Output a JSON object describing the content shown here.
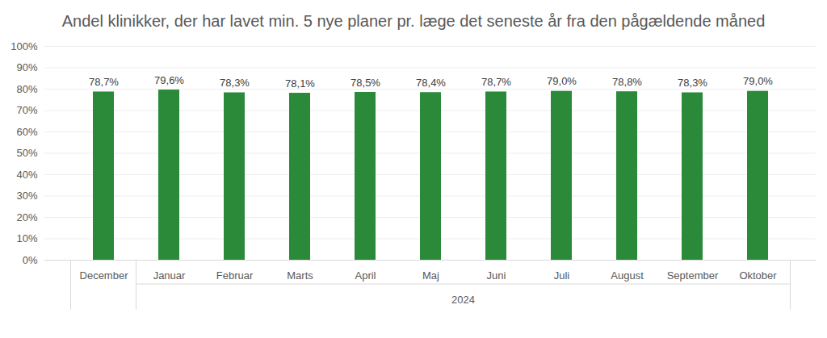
{
  "chart_data": {
    "type": "bar",
    "title": "Andel klinikker, der har lavet min. 5 nye planer pr. læge det seneste år fra den pågældende måned",
    "categories": [
      "December",
      "Januar",
      "Februar",
      "Marts",
      "April",
      "Maj",
      "Juni",
      "Juli",
      "August",
      "September",
      "Oktober"
    ],
    "values": [
      78.7,
      79.6,
      78.3,
      78.1,
      78.5,
      78.4,
      78.7,
      79.0,
      78.8,
      78.3,
      79.0
    ],
    "value_labels": [
      "78,7%",
      "79,6%",
      "78,3%",
      "78,1%",
      "78,5%",
      "78,4%",
      "78,7%",
      "79,0%",
      "78,8%",
      "78,3%",
      "79,0%"
    ],
    "color": "#2a8a3a",
    "ylim": [
      0,
      100
    ],
    "yticks": [
      {
        "value": 0,
        "label": "0%"
      },
      {
        "value": 10,
        "label": "10%"
      },
      {
        "value": 20,
        "label": "20%"
      },
      {
        "value": 30,
        "label": "30%"
      },
      {
        "value": 40,
        "label": "40%"
      },
      {
        "value": 50,
        "label": "50%"
      },
      {
        "value": 60,
        "label": "60%"
      },
      {
        "value": 70,
        "label": "70%"
      },
      {
        "value": 80,
        "label": "80%"
      },
      {
        "value": 90,
        "label": "90%"
      },
      {
        "value": 100,
        "label": "100%"
      }
    ],
    "grid": true,
    "data_labels": true,
    "annotations": [
      {
        "text": "2024",
        "from": "Januar",
        "to": "Oktober"
      }
    ]
  }
}
